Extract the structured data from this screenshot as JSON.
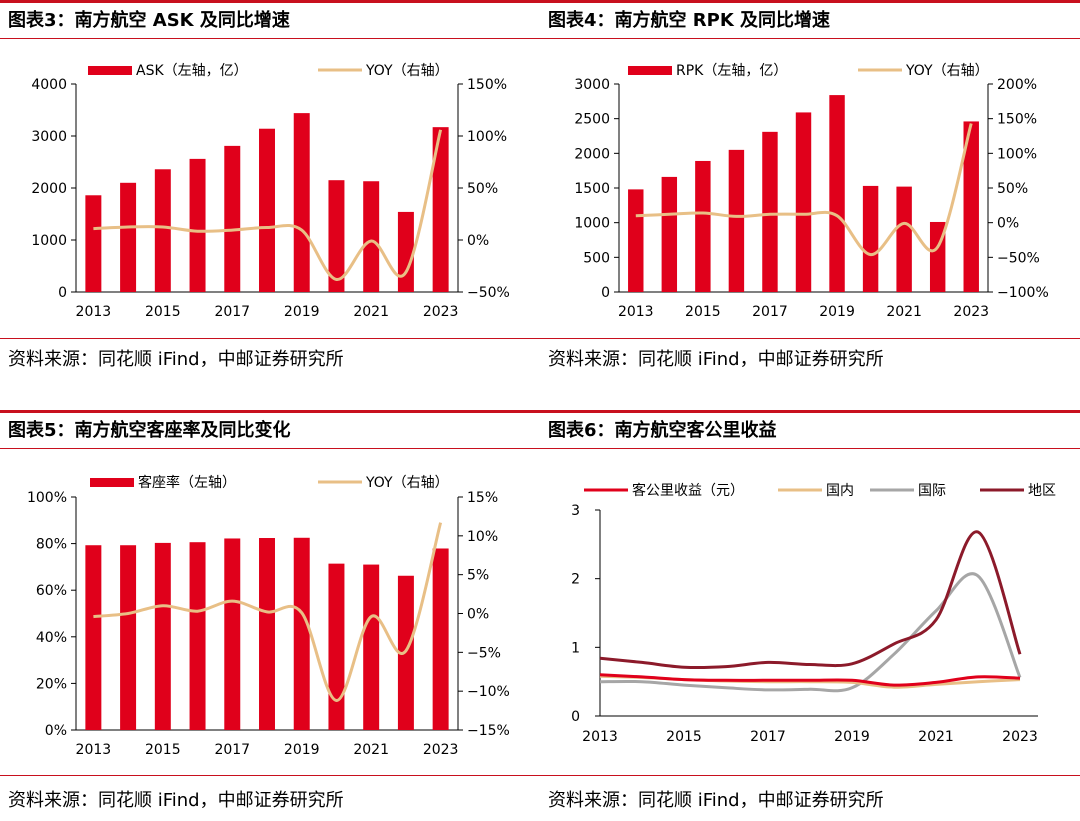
{
  "panels": [
    {
      "title": "图表3：南方航空 ASK 及同比增速",
      "source": "资料来源：同花顺 iFind，中邮证券研究所"
    },
    {
      "title": "图表4：南方航空 RPK 及同比增速",
      "source": "资料来源：同花顺 iFind，中邮证券研究所"
    },
    {
      "title": "图表5：南方航空客座率及同比变化",
      "source": "资料来源：同花顺 iFind，中邮证券研究所"
    },
    {
      "title": "图表6：南方航空客公里收益",
      "source": "资料来源：同花顺 iFind，中邮证券研究所"
    }
  ],
  "colors": {
    "bar": "#e0001b",
    "yoy": "#e8bf86",
    "rule": "#c8101e",
    "domestic": "#e8bf86",
    "intl": "#a6a6a6",
    "region": "#8c1a2a",
    "total": "#e0001b"
  },
  "chart_data": [
    {
      "type": "bar",
      "categories": [
        "2013",
        "2014",
        "2015",
        "2016",
        "2017",
        "2018",
        "2019",
        "2020",
        "2021",
        "2022",
        "2023"
      ],
      "x_tick_labels": [
        "2013",
        "2015",
        "2017",
        "2019",
        "2021",
        "2023"
      ],
      "series": [
        {
          "name": "ASK（左轴，亿）",
          "axis": "left",
          "type": "bar",
          "values": [
            1860,
            2100,
            2360,
            2560,
            2810,
            3140,
            3440,
            2150,
            2130,
            1540,
            3170
          ]
        },
        {
          "name": "YOY（右轴）",
          "axis": "right",
          "type": "line",
          "values": [
            11,
            12.5,
            12.5,
            8.5,
            9.5,
            12,
            9.5,
            -38,
            -1,
            -31,
            106
          ]
        }
      ],
      "ylim_left": [
        0,
        4000
      ],
      "yticks_left": [
        "0",
        "1000",
        "2000",
        "3000",
        "4000"
      ],
      "ylim_right": [
        -50,
        150
      ],
      "yticks_right": [
        "−50%",
        "0%",
        "50%",
        "100%",
        "150%"
      ],
      "legend": "top",
      "grid": false
    },
    {
      "type": "bar",
      "categories": [
        "2013",
        "2014",
        "2015",
        "2016",
        "2017",
        "2018",
        "2019",
        "2020",
        "2021",
        "2022",
        "2023"
      ],
      "x_tick_labels": [
        "2013",
        "2015",
        "2017",
        "2019",
        "2021",
        "2023"
      ],
      "series": [
        {
          "name": "RPK（左轴，亿）",
          "axis": "left",
          "type": "bar",
          "values": [
            1480,
            1660,
            1890,
            2050,
            2310,
            2590,
            2840,
            1530,
            1520,
            1010,
            2460
          ]
        },
        {
          "name": "YOY（右轴）",
          "axis": "right",
          "type": "line",
          "values": [
            10,
            12,
            14,
            9,
            12,
            12,
            10,
            -46,
            -1,
            -35,
            143
          ]
        }
      ],
      "ylim_left": [
        0,
        3000
      ],
      "yticks_left": [
        "0",
        "500",
        "1000",
        "1500",
        "2000",
        "2500",
        "3000"
      ],
      "ylim_right": [
        -100,
        200
      ],
      "yticks_right": [
        "−100%",
        "−50%",
        "0%",
        "50%",
        "100%",
        "150%",
        "200%"
      ],
      "legend": "top",
      "grid": false
    },
    {
      "type": "bar",
      "categories": [
        "2013",
        "2014",
        "2015",
        "2016",
        "2017",
        "2018",
        "2019",
        "2020",
        "2021",
        "2022",
        "2023"
      ],
      "x_tick_labels": [
        "2013",
        "2015",
        "2017",
        "2019",
        "2021",
        "2023"
      ],
      "series": [
        {
          "name": "客座率（左轴）",
          "axis": "left",
          "type": "bar",
          "values": [
            79.3,
            79.3,
            80.3,
            80.6,
            82.2,
            82.4,
            82.5,
            71.4,
            71.0,
            66.2,
            77.9
          ]
        },
        {
          "name": "YOY（右轴）",
          "axis": "right",
          "type": "line",
          "values": [
            -0.4,
            0,
            1,
            0.3,
            1.6,
            0.2,
            0.1,
            -11.2,
            -0.4,
            -4.8,
            11.7
          ]
        }
      ],
      "ylim_left": [
        0,
        100
      ],
      "yticks_left": [
        "0%",
        "20%",
        "40%",
        "60%",
        "80%",
        "100%"
      ],
      "ylim_right": [
        -15,
        15
      ],
      "yticks_right": [
        "−15%",
        "−10%",
        "−5%",
        "0%",
        "5%",
        "10%",
        "15%"
      ],
      "legend": "top",
      "grid": false
    },
    {
      "type": "line",
      "x": [
        2013,
        2014,
        2015,
        2016,
        2017,
        2018,
        2019,
        2020,
        2021,
        2022,
        2023
      ],
      "x_tick_labels": [
        "2013",
        "2015",
        "2017",
        "2019",
        "2021",
        "2023"
      ],
      "series": [
        {
          "name": "客公里收益（元）",
          "values": [
            0.6,
            0.57,
            0.53,
            0.52,
            0.52,
            0.52,
            0.52,
            0.45,
            0.49,
            0.57,
            0.55
          ]
        },
        {
          "name": "国内",
          "values": [
            0.58,
            0.56,
            0.53,
            0.51,
            0.5,
            0.5,
            0.49,
            0.42,
            0.46,
            0.5,
            0.53
          ]
        },
        {
          "name": "国际",
          "values": [
            0.5,
            0.5,
            0.45,
            0.41,
            0.38,
            0.39,
            0.41,
            0.9,
            1.53,
            2.04,
            0.56
          ]
        },
        {
          "name": "地区",
          "values": [
            0.84,
            0.78,
            0.71,
            0.72,
            0.78,
            0.75,
            0.76,
            1.05,
            1.4,
            2.68,
            0.9
          ]
        }
      ],
      "ylim": [
        0,
        3
      ],
      "yticks": [
        "0",
        "1",
        "2",
        "3"
      ],
      "legend": "top",
      "grid": false
    }
  ]
}
